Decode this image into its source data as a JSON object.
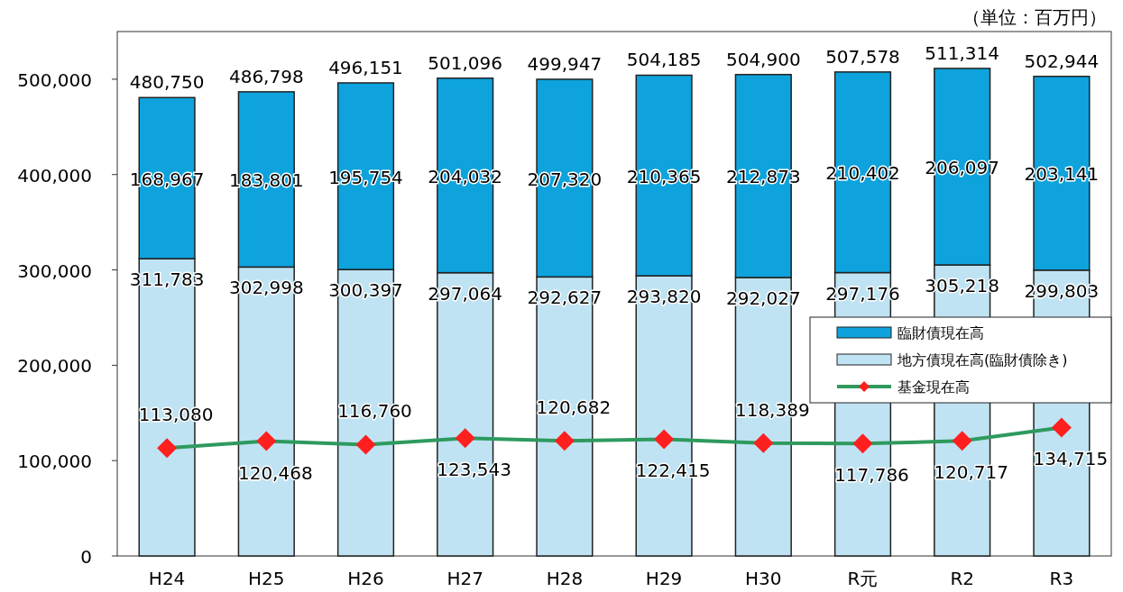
{
  "chart_data": {
    "type": "bar",
    "stacked": true,
    "categories": [
      "H24",
      "H25",
      "H26",
      "H27",
      "H28",
      "H29",
      "H30",
      "R元",
      "R2",
      "R3"
    ],
    "series": [
      {
        "name": "地方債現在高(臨財債除き)",
        "color": "#bfe3f3",
        "values": [
          311783,
          302998,
          300397,
          297064,
          292627,
          293820,
          292027,
          297176,
          305218,
          299803
        ],
        "value_labels": [
          "311,783",
          "302,998",
          "300,397",
          "297,064",
          "292,627",
          "293,820",
          "292,027",
          "297,176",
          "305,218",
          "299,803"
        ]
      },
      {
        "name": "臨財債現在高",
        "color": "#0ea3dc",
        "values": [
          168967,
          183801,
          195754,
          204032,
          207320,
          210365,
          212873,
          210402,
          206097,
          203141
        ],
        "value_labels": [
          "168,967",
          "183,801",
          "195,754",
          "204,032",
          "207,320",
          "210,365",
          "212,873",
          "210,402",
          "206,097",
          "203,141"
        ]
      },
      {
        "name": "基金現在高",
        "type": "line",
        "color": "#2e9a5e",
        "marker": "diamond",
        "values": [
          113080,
          120468,
          116760,
          123543,
          120682,
          122415,
          118389,
          117786,
          120717,
          134715
        ],
        "value_labels": [
          "113,080",
          "120,468",
          "116,760",
          "123,543",
          "120,682",
          "122,415",
          "118,389",
          "117,786",
          "120,717",
          "134,715"
        ]
      }
    ],
    "totals": [
      "480,750",
      "486,798",
      "496,151",
      "501,096",
      "499,947",
      "504,185",
      "504,900",
      "507,578",
      "511,314",
      "502,944"
    ],
    "ylim": [
      0,
      550000
    ],
    "yticks": [
      0,
      {
        "value": 100000,
        "label": "100,000"
      },
      {
        "value": 200000,
        "label": "200,000"
      },
      {
        "value": 300000,
        "label": "300,000"
      },
      {
        "value": 400000,
        "label": "400,000"
      },
      {
        "value": 500000,
        "label": "500,000"
      }
    ],
    "legend": "right",
    "annotations": [
      "（単位：百万円）"
    ]
  }
}
